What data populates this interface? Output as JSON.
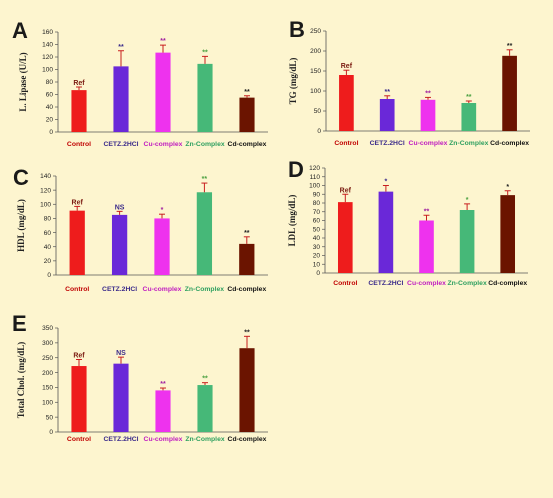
{
  "chart_data": [
    {
      "panel": "A",
      "type": "bar",
      "ylabel": "L. Lipase (U/L)",
      "ylim": [
        0,
        160
      ],
      "yticks": [
        0,
        20,
        40,
        60,
        80,
        100,
        120,
        140,
        160
      ],
      "categories": [
        "Control",
        "CETZ.2HCl",
        "Cu-complex",
        "Zn-Complex",
        "Cd-complex"
      ],
      "values": [
        67,
        105,
        127,
        109,
        55
      ],
      "errors": [
        5,
        25,
        12,
        12,
        3
      ],
      "annotations": [
        "Ref",
        "**",
        "**",
        "**",
        "**"
      ]
    },
    {
      "panel": "B",
      "type": "bar",
      "ylabel": "TG (mg/dL)",
      "ylim": [
        0,
        250
      ],
      "yticks": [
        0,
        50,
        100,
        150,
        200,
        250
      ],
      "categories": [
        "Control",
        "CETZ.2HCl",
        "Cu-complex",
        "Zn-Complex",
        "Cd-complex"
      ],
      "values": [
        140,
        80,
        78,
        70,
        188
      ],
      "errors": [
        12,
        8,
        6,
        5,
        15
      ],
      "annotations": [
        "Ref",
        "**",
        "**",
        "**",
        "**"
      ]
    },
    {
      "panel": "C",
      "type": "bar",
      "ylabel": "HDL (mg/dL)",
      "ylim": [
        0,
        140
      ],
      "yticks": [
        0,
        20,
        40,
        60,
        80,
        100,
        120,
        140
      ],
      "categories": [
        "Control",
        "CETZ.2HCl",
        "Cu-complex",
        "Zn-Complex",
        "Cd-complex"
      ],
      "values": [
        91,
        85,
        80,
        117,
        44
      ],
      "errors": [
        6,
        5,
        6,
        13,
        10
      ],
      "annotations": [
        "Ref",
        "NS",
        "*",
        "**",
        "**"
      ]
    },
    {
      "panel": "D",
      "type": "bar",
      "ylabel": "LDL (mg/dL)",
      "ylim": [
        0,
        120
      ],
      "yticks": [
        0,
        10,
        20,
        30,
        40,
        50,
        60,
        70,
        80,
        90,
        100,
        110,
        120
      ],
      "categories": [
        "Control",
        "CETZ.2HCl",
        "Cu-complex",
        "Zn-Complex",
        "Cd-complex"
      ],
      "values": [
        81,
        93,
        60,
        72,
        89
      ],
      "errors": [
        9,
        7,
        6,
        7,
        5
      ],
      "annotations": [
        "Ref",
        "*",
        "**",
        "*",
        "*"
      ]
    },
    {
      "panel": "E",
      "type": "bar",
      "ylabel": "Total Chol. (mg/dL)",
      "ylim": [
        0,
        350
      ],
      "yticks": [
        0,
        50,
        100,
        150,
        200,
        250,
        300,
        350
      ],
      "categories": [
        "Control",
        "CETZ.2HCl",
        "Cu-complex",
        "Zn-Complex",
        "Cd-complex"
      ],
      "values": [
        222,
        230,
        140,
        158,
        282
      ],
      "errors": [
        22,
        22,
        8,
        8,
        40
      ],
      "annotations": [
        "Ref",
        "NS",
        "**",
        "**",
        "**"
      ]
    }
  ],
  "colors": {
    "bars": [
      "#ee1c1c",
      "#6a28d8",
      "#ee32ee",
      "#46b878",
      "#6b1400"
    ],
    "cat_labels": [
      "#c00000",
      "#3a2a8a",
      "#c020c0",
      "#2fa060",
      "#111111"
    ],
    "annotations": [
      "#7a1a10",
      "#3a2a8a",
      "#a020a0",
      "#4aa040",
      "#222222"
    ],
    "error": "#c81e1e"
  }
}
